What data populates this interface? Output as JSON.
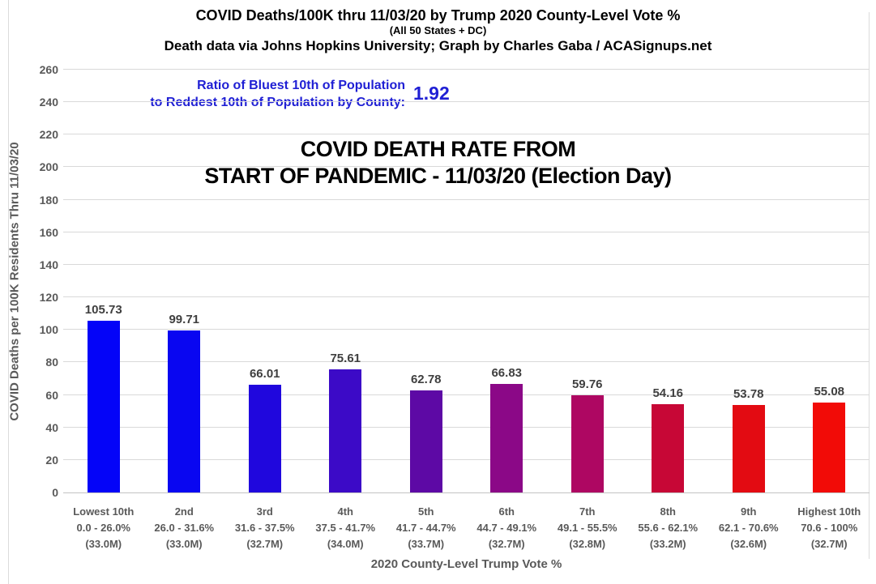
{
  "header": {
    "title": "COVID Deaths/100K thru 11/03/20 by Trump 2020 County-Level Vote %",
    "subtitle": "(All 50 States + DC)",
    "credit": "Death data via Johns Hopkins University; Graph by Charles Gaba / ACASignups.net"
  },
  "ratio": {
    "label_line1": "Ratio of Bluest 10th of Population",
    "label_line2": "to Reddest 10th of Population by County:",
    "value": "1.92",
    "color": "#1f1fd4"
  },
  "headline": {
    "line1": "COVID DEATH RATE FROM",
    "line2": "START OF PANDEMIC - 11/03/20 (Election Day)"
  },
  "chart_data": {
    "type": "bar",
    "title": "COVID DEATH RATE FROM START OF PANDEMIC - 11/03/20 (Election Day)",
    "categories": [
      {
        "name": "Lowest 10th",
        "range": "0.0 - 26.0%",
        "population": "(33.0M)"
      },
      {
        "name": "2nd",
        "range": "26.0 - 31.6%",
        "population": "(33.0M)"
      },
      {
        "name": "3rd",
        "range": "31.6 - 37.5%",
        "population": "(32.7M)"
      },
      {
        "name": "4th",
        "range": "37.5 - 41.7%",
        "population": "(34.0M)"
      },
      {
        "name": "5th",
        "range": "41.7 - 44.7%",
        "population": "(33.7M)"
      },
      {
        "name": "6th",
        "range": "44.7 - 49.1%",
        "population": "(32.7M)"
      },
      {
        "name": "7th",
        "range": "49.1 - 55.5%",
        "population": "(32.8M)"
      },
      {
        "name": "8th",
        "range": "55.6 - 62.1%",
        "population": "(33.2M)"
      },
      {
        "name": "9th",
        "range": "62.1 - 70.6%",
        "population": "(32.6M)"
      },
      {
        "name": "Highest 10th",
        "range": "70.6 - 100%",
        "population": "(32.7M)"
      }
    ],
    "values": [
      105.73,
      99.71,
      66.01,
      75.61,
      62.78,
      66.83,
      59.76,
      54.16,
      53.78,
      55.08
    ],
    "bar_colors": [
      "#0404f8",
      "#0906f1",
      "#2007dd",
      "#3c0ac7",
      "#5d09a5",
      "#8b0887",
      "#ae0762",
      "#c70736",
      "#e30b12",
      "#f20b07"
    ],
    "xlabel": "2020 County-Level Trump Vote %",
    "ylabel": "COVID Deaths per 100K Residents Thru 11/03/20",
    "ylim": [
      0,
      260
    ],
    "ytick_step": 20,
    "grid": true,
    "legend": "none",
    "colors": {
      "grid_line": "#d9d9d9",
      "axis_line": "#c3c3c3",
      "tick_label": "#595959",
      "value_label": "#3f3f3f",
      "title_text": "#000000"
    }
  }
}
